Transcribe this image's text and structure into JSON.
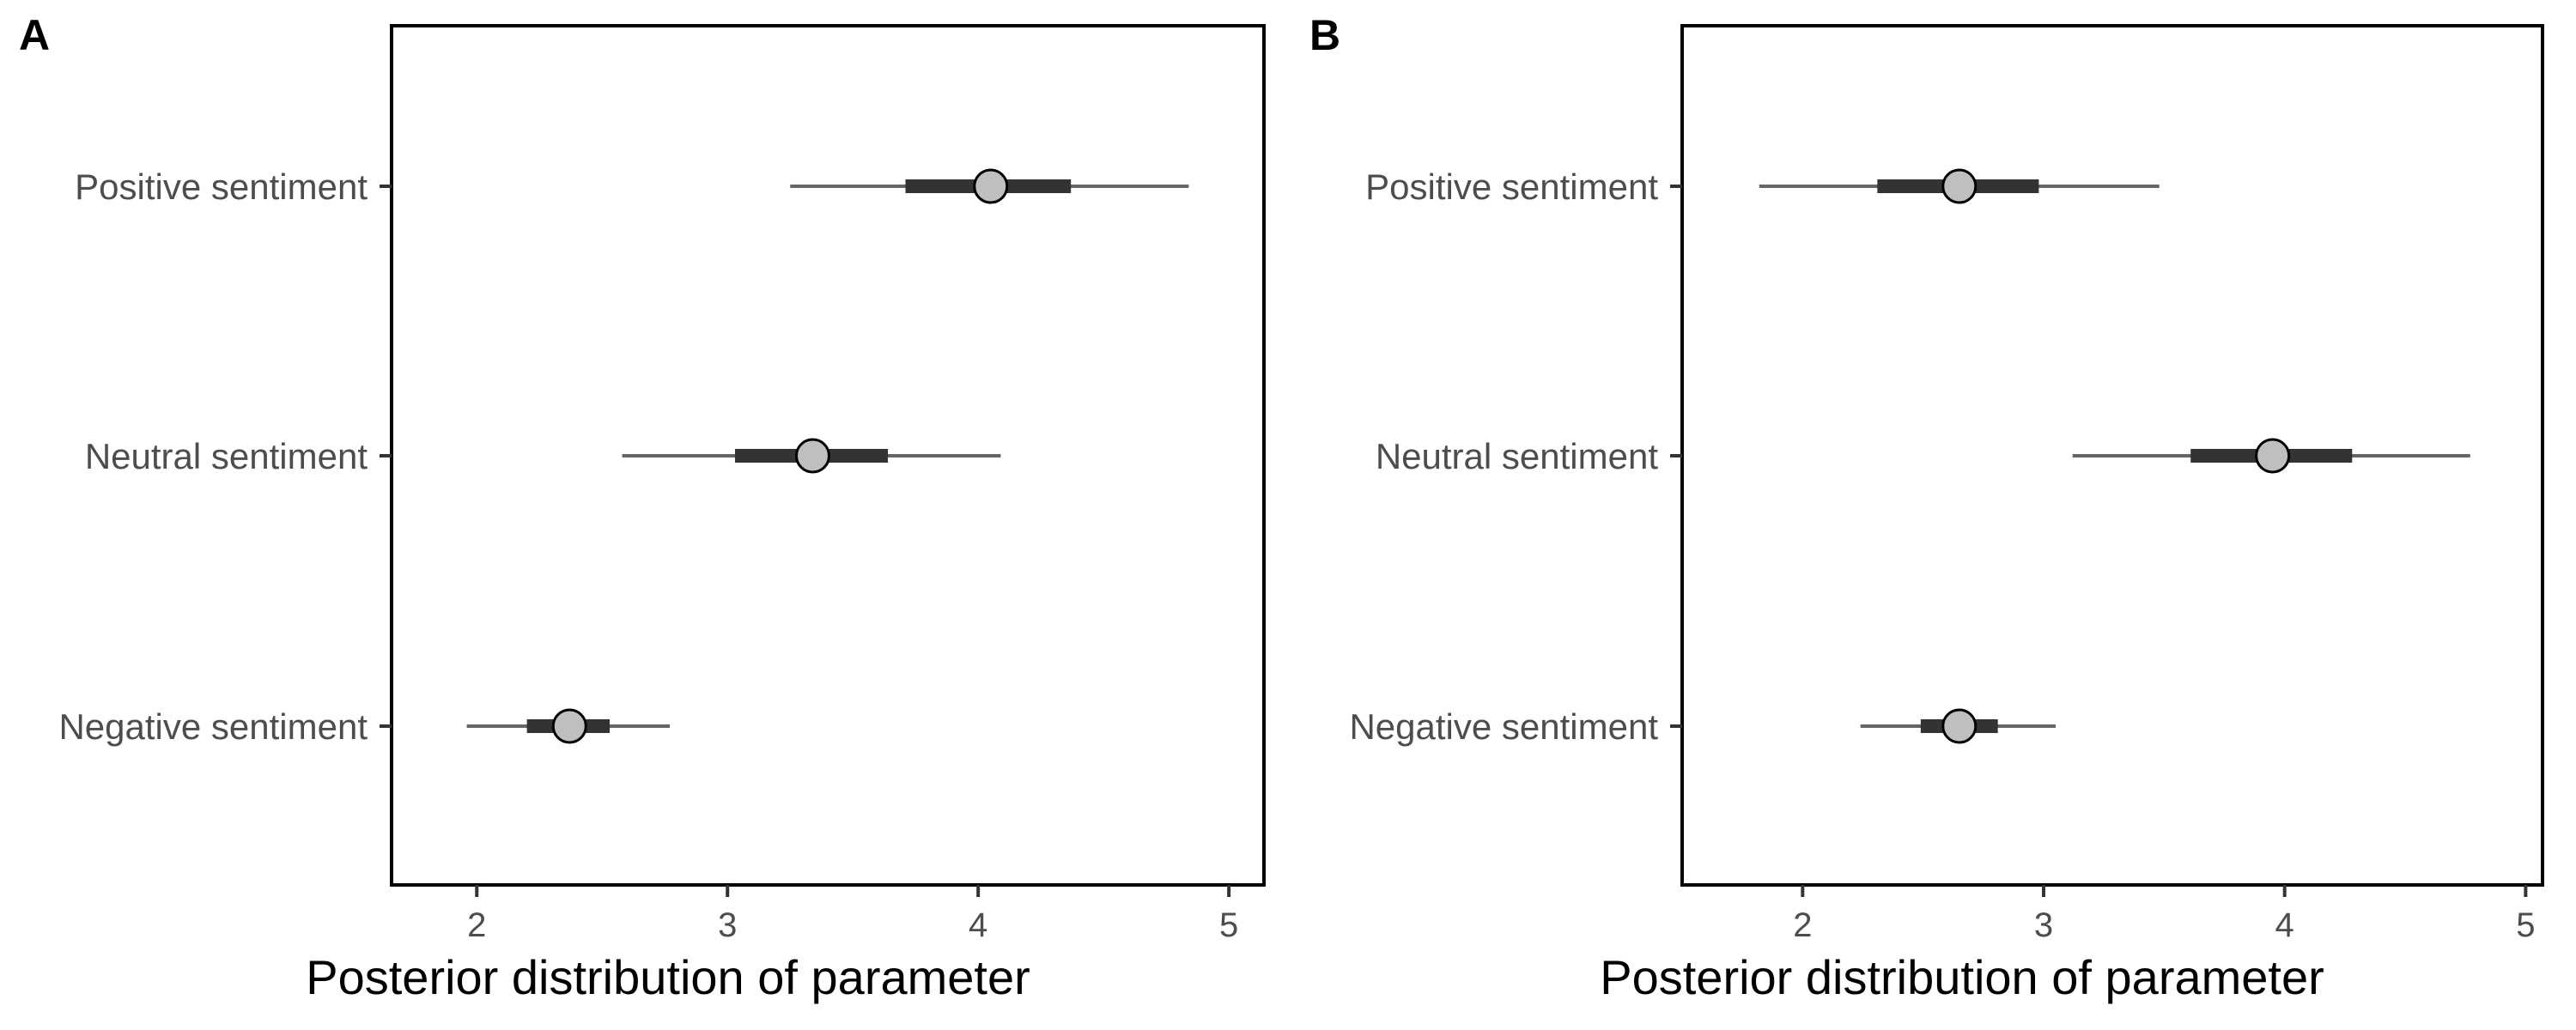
{
  "chart_data": [
    {
      "type": "pointinterval",
      "panel": "A",
      "xlabel": "Posterior distribution of parameter",
      "xlim": [
        1.66,
        5.14
      ],
      "xticks": [
        2,
        3,
        4,
        5
      ],
      "tick_labels": [
        "2",
        "3",
        "4",
        "5"
      ],
      "categories": [
        "Positive sentiment",
        "Neutral sentiment",
        "Negative sentiment"
      ],
      "points": [
        {
          "category": "Positive sentiment",
          "median": 4.05,
          "inner": [
            3.71,
            4.37
          ],
          "outer": [
            3.25,
            4.84
          ]
        },
        {
          "category": "Neutral sentiment",
          "median": 3.34,
          "inner": [
            3.03,
            3.64
          ],
          "outer": [
            2.58,
            4.09
          ]
        },
        {
          "category": "Negative sentiment",
          "median": 2.37,
          "inner": [
            2.2,
            2.53
          ],
          "outer": [
            1.96,
            2.77
          ]
        }
      ],
      "grid": false
    },
    {
      "type": "pointinterval",
      "panel": "B",
      "xlabel": "Posterior distribution of parameter",
      "xlim": [
        1.5,
        5.07
      ],
      "xticks": [
        2,
        3,
        4,
        5
      ],
      "tick_labels": [
        "2",
        "3",
        "4",
        "5"
      ],
      "categories": [
        "Positive sentiment",
        "Neutral sentiment",
        "Negative sentiment"
      ],
      "points": [
        {
          "category": "Positive sentiment",
          "median": 2.65,
          "inner": [
            2.31,
            2.98
          ],
          "outer": [
            1.82,
            3.48
          ]
        },
        {
          "category": "Neutral sentiment",
          "median": 3.95,
          "inner": [
            3.61,
            4.28
          ],
          "outer": [
            3.12,
            4.77
          ]
        },
        {
          "category": "Negative sentiment",
          "median": 2.65,
          "inner": [
            2.49,
            2.81
          ],
          "outer": [
            2.24,
            3.05
          ]
        }
      ],
      "grid": false
    }
  ]
}
